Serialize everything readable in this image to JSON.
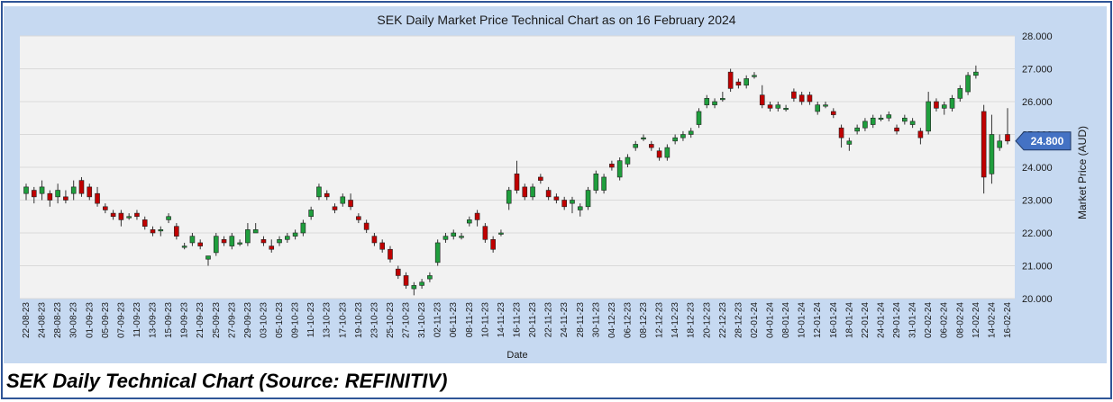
{
  "chart_data": {
    "type": "candlestick",
    "title": "SEK Daily Market Price Technical Chart as on 16 February 2024",
    "xlabel": "Date",
    "ylabel": "Market Price (AUD)",
    "ylim": [
      20.0,
      28.0
    ],
    "yticks": [
      "20.000",
      "21.000",
      "22.000",
      "23.000",
      "24.000",
      "25.000",
      "26.000",
      "27.000",
      "28.000"
    ],
    "grid": true,
    "last_price_label": "24.800",
    "colors": {
      "up": "#1f9e3d",
      "down": "#c00000",
      "grid": "#d9d9d9",
      "tag": "#4472c4"
    },
    "x_tick_labels": [
      "22-08-23",
      "24-08-23",
      "28-08-23",
      "30-08-23",
      "01-09-23",
      "05-09-23",
      "07-09-23",
      "11-09-23",
      "13-09-23",
      "15-09-23",
      "19-09-23",
      "21-09-23",
      "25-09-23",
      "27-09-23",
      "29-09-23",
      "03-10-23",
      "05-10-23",
      "09-10-23",
      "11-10-23",
      "13-10-23",
      "17-10-23",
      "19-10-23",
      "23-10-23",
      "25-10-23",
      "27-10-23",
      "31-10-23",
      "02-11-23",
      "06-11-23",
      "08-11-23",
      "10-11-23",
      "14-11-23",
      "16-11-23",
      "20-11-23",
      "22-11-23",
      "24-11-23",
      "28-11-23",
      "30-11-23",
      "04-12-23",
      "06-12-23",
      "08-12-23",
      "12-12-23",
      "14-12-23",
      "18-12-23",
      "20-12-23",
      "22-12-23",
      "28-12-23",
      "02-01-24",
      "04-01-24",
      "08-01-24",
      "10-01-24",
      "12-01-24",
      "16-01-24",
      "18-01-24",
      "22-01-24",
      "24-01-24",
      "29-01-24",
      "31-01-24",
      "02-02-24",
      "06-02-24",
      "08-02-24",
      "12-02-24",
      "14-02-24",
      "16-02-24"
    ],
    "candles": [
      [
        23.2,
        23.5,
        23.0,
        23.4
      ],
      [
        23.3,
        23.4,
        22.9,
        23.1
      ],
      [
        23.2,
        23.6,
        23.0,
        23.4
      ],
      [
        23.2,
        23.3,
        22.8,
        23.0
      ],
      [
        23.1,
        23.5,
        22.9,
        23.3
      ],
      [
        23.1,
        23.3,
        22.9,
        23.0
      ],
      [
        23.2,
        23.6,
        23.0,
        23.4
      ],
      [
        23.6,
        23.7,
        23.1,
        23.2
      ],
      [
        23.4,
        23.5,
        23.0,
        23.1
      ],
      [
        23.2,
        23.4,
        22.8,
        22.9
      ],
      [
        22.8,
        22.9,
        22.6,
        22.7
      ],
      [
        22.6,
        22.7,
        22.4,
        22.5
      ],
      [
        22.6,
        22.7,
        22.2,
        22.4
      ],
      [
        22.5,
        22.6,
        22.4,
        22.5
      ],
      [
        22.6,
        22.7,
        22.4,
        22.5
      ],
      [
        22.4,
        22.5,
        22.1,
        22.2
      ],
      [
        22.1,
        22.2,
        21.9,
        22.0
      ],
      [
        22.1,
        22.2,
        21.9,
        22.1
      ],
      [
        22.4,
        22.6,
        22.3,
        22.5
      ],
      [
        22.2,
        22.3,
        21.8,
        21.9
      ],
      [
        21.6,
        21.7,
        21.5,
        21.6
      ],
      [
        21.7,
        22.0,
        21.6,
        21.9
      ],
      [
        21.7,
        21.8,
        21.5,
        21.6
      ],
      [
        21.2,
        21.3,
        21.0,
        21.3
      ],
      [
        21.4,
        22.0,
        21.3,
        21.9
      ],
      [
        21.8,
        21.9,
        21.6,
        21.7
      ],
      [
        21.6,
        22.0,
        21.5,
        21.9
      ],
      [
        21.7,
        21.8,
        21.6,
        21.7
      ],
      [
        21.7,
        22.3,
        21.6,
        22.1
      ],
      [
        22.0,
        22.3,
        22.0,
        22.1
      ],
      [
        21.8,
        21.9,
        21.6,
        21.7
      ],
      [
        21.6,
        21.8,
        21.4,
        21.5
      ],
      [
        21.7,
        21.9,
        21.6,
        21.8
      ],
      [
        21.8,
        22.0,
        21.7,
        21.9
      ],
      [
        21.9,
        22.1,
        21.8,
        22.0
      ],
      [
        22.0,
        22.4,
        21.9,
        22.3
      ],
      [
        22.5,
        22.8,
        22.4,
        22.7
      ],
      [
        23.1,
        23.5,
        23.0,
        23.4
      ],
      [
        23.2,
        23.3,
        23.0,
        23.1
      ],
      [
        22.8,
        22.9,
        22.6,
        22.7
      ],
      [
        22.9,
        23.2,
        22.8,
        23.1
      ],
      [
        23.0,
        23.2,
        22.7,
        22.8
      ],
      [
        22.5,
        22.6,
        22.3,
        22.4
      ],
      [
        22.3,
        22.4,
        22.0,
        22.1
      ],
      [
        21.9,
        22.0,
        21.6,
        21.7
      ],
      [
        21.7,
        21.8,
        21.4,
        21.5
      ],
      [
        21.5,
        21.6,
        21.1,
        21.2
      ],
      [
        20.9,
        21.0,
        20.6,
        20.7
      ],
      [
        20.7,
        20.8,
        20.3,
        20.4
      ],
      [
        20.3,
        20.5,
        20.1,
        20.4
      ],
      [
        20.4,
        20.6,
        20.3,
        20.5
      ],
      [
        20.6,
        20.8,
        20.5,
        20.7
      ],
      [
        21.1,
        21.8,
        21.0,
        21.7
      ],
      [
        21.8,
        22.0,
        21.7,
        21.9
      ],
      [
        21.9,
        22.1,
        21.8,
        22.0
      ],
      [
        21.9,
        22.0,
        21.8,
        21.9
      ],
      [
        22.3,
        22.5,
        22.2,
        22.4
      ],
      [
        22.6,
        22.7,
        22.2,
        22.4
      ],
      [
        22.2,
        22.3,
        21.7,
        21.8
      ],
      [
        21.8,
        21.9,
        21.4,
        21.5
      ],
      [
        22.0,
        22.1,
        21.9,
        22.0
      ],
      [
        22.9,
        23.4,
        22.7,
        23.3
      ],
      [
        23.8,
        24.2,
        23.2,
        23.3
      ],
      [
        23.4,
        23.5,
        23.0,
        23.1
      ],
      [
        23.1,
        23.5,
        23.0,
        23.4
      ],
      [
        23.7,
        23.8,
        23.5,
        23.6
      ],
      [
        23.3,
        23.4,
        23.0,
        23.1
      ],
      [
        23.1,
        23.2,
        22.9,
        23.0
      ],
      [
        23.0,
        23.1,
        22.7,
        22.8
      ],
      [
        22.9,
        23.1,
        22.6,
        23.0
      ],
      [
        22.7,
        22.9,
        22.5,
        22.8
      ],
      [
        22.8,
        23.4,
        22.7,
        23.3
      ],
      [
        23.3,
        23.9,
        23.2,
        23.8
      ],
      [
        23.3,
        23.8,
        23.2,
        23.7
      ],
      [
        24.1,
        24.2,
        23.9,
        24.0
      ],
      [
        23.7,
        24.3,
        23.6,
        24.2
      ],
      [
        24.1,
        24.4,
        24.0,
        24.3
      ],
      [
        24.6,
        24.8,
        24.5,
        24.7
      ],
      [
        24.9,
        25.0,
        24.8,
        24.9
      ],
      [
        24.7,
        24.8,
        24.5,
        24.6
      ],
      [
        24.5,
        24.6,
        24.2,
        24.3
      ],
      [
        24.3,
        24.7,
        24.2,
        24.6
      ],
      [
        24.8,
        25.0,
        24.7,
        24.9
      ],
      [
        24.9,
        25.1,
        24.8,
        25.0
      ],
      [
        25.0,
        25.2,
        24.9,
        25.1
      ],
      [
        25.3,
        25.8,
        25.2,
        25.7
      ],
      [
        25.9,
        26.2,
        25.8,
        26.1
      ],
      [
        25.9,
        26.1,
        25.8,
        26.0
      ],
      [
        26.1,
        26.3,
        26.0,
        26.1
      ],
      [
        26.9,
        27.0,
        26.3,
        26.4
      ],
      [
        26.6,
        26.7,
        26.4,
        26.5
      ],
      [
        26.5,
        26.8,
        26.4,
        26.7
      ],
      [
        26.8,
        26.9,
        26.7,
        26.8
      ],
      [
        26.2,
        26.5,
        25.8,
        25.9
      ],
      [
        25.9,
        26.0,
        25.7,
        25.8
      ],
      [
        25.8,
        26.0,
        25.7,
        25.9
      ],
      [
        25.8,
        25.9,
        25.7,
        25.8
      ],
      [
        26.3,
        26.4,
        26.0,
        26.1
      ],
      [
        26.2,
        26.3,
        25.9,
        26.0
      ],
      [
        26.2,
        26.3,
        25.9,
        26.0
      ],
      [
        25.7,
        26.0,
        25.6,
        25.9
      ],
      [
        25.9,
        26.0,
        25.8,
        25.9
      ],
      [
        25.7,
        25.8,
        25.5,
        25.6
      ],
      [
        25.2,
        25.3,
        24.6,
        24.9
      ],
      [
        24.7,
        24.9,
        24.5,
        24.8
      ],
      [
        25.1,
        25.3,
        25.0,
        25.2
      ],
      [
        25.2,
        25.5,
        25.1,
        25.4
      ],
      [
        25.3,
        25.6,
        25.2,
        25.5
      ],
      [
        25.5,
        25.6,
        25.4,
        25.5
      ],
      [
        25.5,
        25.7,
        25.4,
        25.6
      ],
      [
        25.2,
        25.3,
        25.0,
        25.1
      ],
      [
        25.4,
        25.6,
        25.3,
        25.5
      ],
      [
        25.3,
        25.5,
        25.2,
        25.4
      ],
      [
        25.1,
        25.2,
        24.7,
        24.9
      ],
      [
        25.1,
        26.3,
        25.0,
        26.0
      ],
      [
        26.0,
        26.1,
        25.7,
        25.8
      ],
      [
        25.8,
        26.0,
        25.6,
        25.9
      ],
      [
        25.8,
        26.2,
        25.7,
        26.1
      ],
      [
        26.1,
        26.5,
        26.0,
        26.4
      ],
      [
        26.3,
        26.9,
        26.2,
        26.8
      ],
      [
        26.8,
        27.1,
        26.7,
        26.9
      ],
      [
        25.7,
        25.9,
        23.2,
        23.7
      ],
      [
        23.8,
        25.6,
        23.5,
        25.0
      ],
      [
        24.6,
        25.0,
        24.5,
        24.8
      ],
      [
        25.0,
        25.8,
        24.7,
        24.8
      ]
    ]
  }
}
